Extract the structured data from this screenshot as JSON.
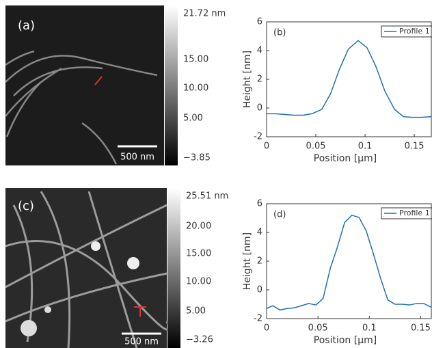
{
  "images": [
    {
      "panel_label": "(a)",
      "scale_bar": "500 nm",
      "colorbar_labels": [
        "21.72 nm",
        "15.00",
        "10.00",
        "5.00",
        "−3.85"
      ]
    },
    {
      "panel_label": "(c)",
      "scale_bar": "500 nm",
      "colorbar_labels": [
        "25.51 nm",
        "20.00",
        "15.00",
        "10.00",
        "5.00",
        "−3.26"
      ]
    }
  ],
  "chart_data": [
    {
      "type": "line",
      "panel_label": "(b)",
      "x_label": "Position [μm]",
      "y_label": "Height [nm]",
      "xlim": [
        0,
        0.168
      ],
      "ylim": [
        -2,
        6
      ],
      "xticks": [
        0,
        0.05,
        0.1,
        0.15
      ],
      "yticks": [
        -2,
        0,
        2,
        4,
        6
      ],
      "legend": "upper-right",
      "x": [
        0,
        0.009,
        0.019,
        0.028,
        0.037,
        0.046,
        0.056,
        0.065,
        0.074,
        0.083,
        0.093,
        0.102,
        0.111,
        0.12,
        0.13,
        0.139,
        0.148,
        0.157,
        0.167
      ],
      "series": [
        {
          "name": "Profile 1",
          "color": "#1f6fb4",
          "values": [
            -0.4,
            -0.4,
            -0.45,
            -0.5,
            -0.5,
            -0.4,
            -0.1,
            1.0,
            2.7,
            4.1,
            4.7,
            4.2,
            2.9,
            1.2,
            -0.1,
            -0.6,
            -0.65,
            -0.65,
            -0.6
          ]
        }
      ]
    },
    {
      "type": "line",
      "panel_label": "(d)",
      "x_label": "Position [μm]",
      "y_label": "Height [nm]",
      "xlim": [
        0,
        0.161
      ],
      "ylim": [
        -2,
        6
      ],
      "xticks": [
        0,
        0.05,
        0.1,
        0.15
      ],
      "yticks": [
        -2,
        0,
        2,
        4,
        6
      ],
      "legend": "upper-right",
      "x": [
        0,
        0.006,
        0.013,
        0.02,
        0.027,
        0.034,
        0.041,
        0.048,
        0.055,
        0.062,
        0.069,
        0.076,
        0.083,
        0.09,
        0.097,
        0.104,
        0.111,
        0.118,
        0.125,
        0.132,
        0.139,
        0.146,
        0.153,
        0.16
      ],
      "series": [
        {
          "name": "Profile 1",
          "color": "#1f6fb4",
          "values": [
            -1.3,
            -1.1,
            -1.4,
            -1.3,
            -1.25,
            -1.1,
            -0.95,
            -1.05,
            -0.6,
            1.5,
            3.0,
            4.7,
            5.2,
            5.05,
            4.1,
            2.5,
            0.8,
            -0.7,
            -1.0,
            -1.0,
            -1.05,
            -0.95,
            -0.95,
            -1.2
          ]
        }
      ]
    }
  ]
}
